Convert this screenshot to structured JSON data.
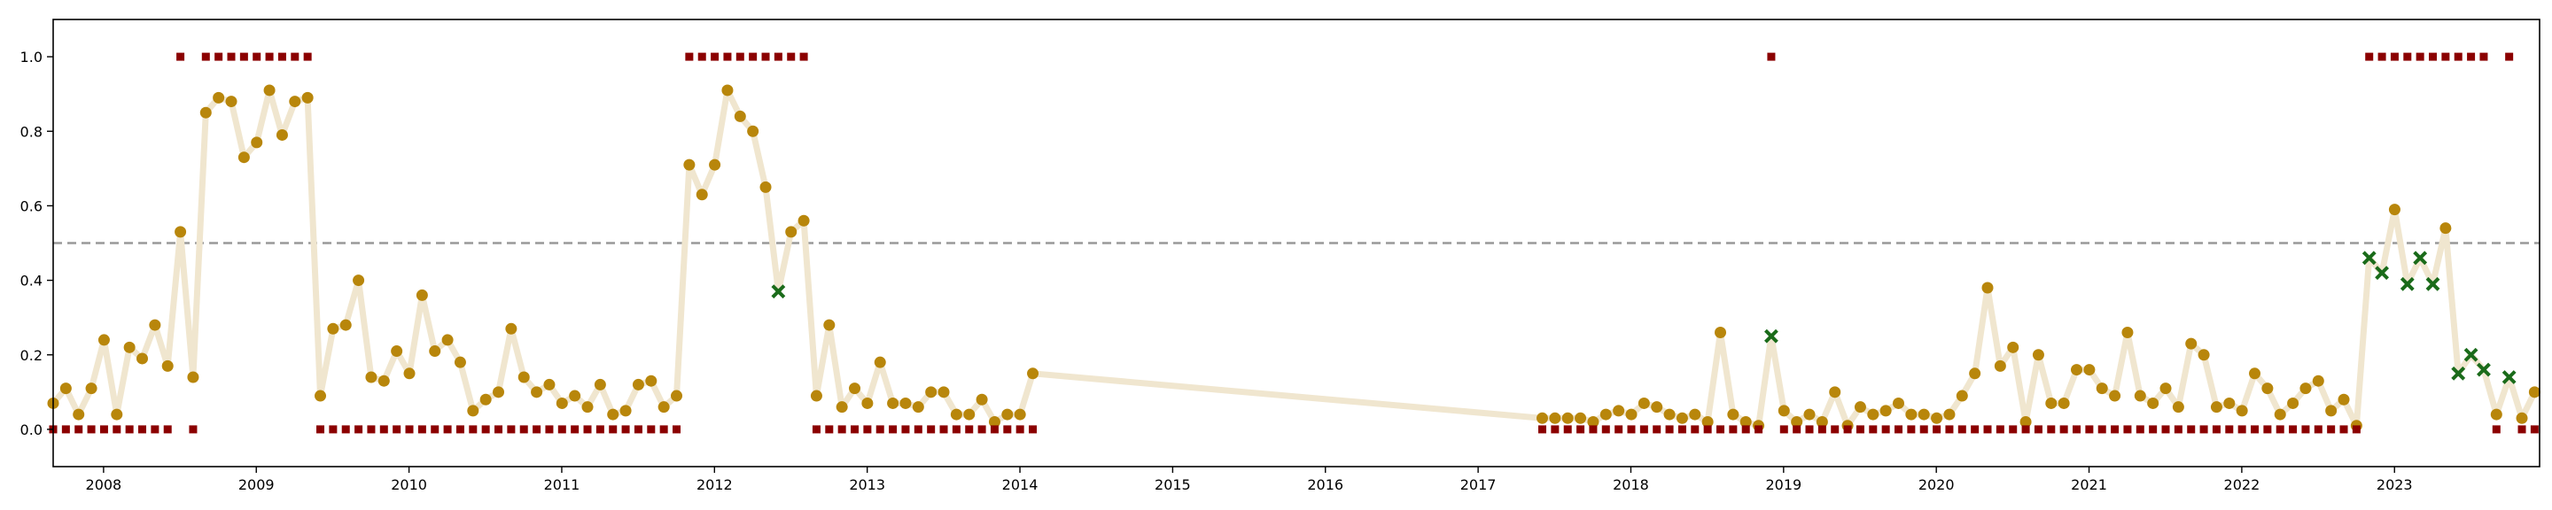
{
  "chart_data": {
    "type": "scatter",
    "title": "",
    "xlabel": "",
    "ylabel": "",
    "xlim": [
      2007.67,
      2023.95
    ],
    "ylim": [
      -0.1,
      1.1
    ],
    "grid": false,
    "legend": "none",
    "x_ticks": [
      2008,
      2009,
      2010,
      2011,
      2012,
      2013,
      2014,
      2015,
      2016,
      2017,
      2018,
      2019,
      2020,
      2021,
      2022,
      2023
    ],
    "x_tick_labels": [
      "2008",
      "2009",
      "2010",
      "2011",
      "2012",
      "2013",
      "2014",
      "2015",
      "2016",
      "2017",
      "2018",
      "2019",
      "2020",
      "2021",
      "2022",
      "2023"
    ],
    "y_ticks": [
      0.0,
      0.2,
      0.4,
      0.6,
      0.8,
      1.0
    ],
    "y_tick_labels": [
      "0.0",
      "0.2",
      "0.4",
      "0.6",
      "0.8",
      "1.0"
    ],
    "threshold": {
      "y": 0.5,
      "style": "dashed",
      "color": "#999999"
    },
    "colors": {
      "line": "#f0e6cf",
      "point": "#b8860b",
      "point_highlight": "#1a6b1a",
      "label_marker": "#8b0000"
    },
    "segments": [
      {
        "x_start": 2007.67,
        "x_step": 0.0833,
        "values": [
          0.07,
          0.11,
          0.04,
          0.11,
          0.24,
          0.04,
          0.22,
          0.19,
          0.28,
          0.17,
          0.53,
          0.14,
          0.85,
          0.89,
          0.88,
          0.73,
          0.77,
          0.91,
          0.79,
          0.88,
          0.89,
          0.09,
          0.27,
          0.28,
          0.4,
          0.14,
          0.13,
          0.21,
          0.15,
          0.36,
          0.21,
          0.24,
          0.18,
          0.05,
          0.08,
          0.1,
          0.27,
          0.14,
          0.1,
          0.12,
          0.07,
          0.09,
          0.06,
          0.12,
          0.04,
          0.05,
          0.12,
          0.13,
          0.06,
          0.09,
          0.71,
          0.63,
          0.71,
          0.91,
          0.84,
          0.8,
          0.65,
          0.37,
          0.53,
          0.56,
          0.09,
          0.28,
          0.06,
          0.11,
          0.07,
          0.18,
          0.07,
          0.07,
          0.06,
          0.1,
          0.1,
          0.04,
          0.04,
          0.08,
          0.02,
          0.04,
          0.04,
          0.15
        ],
        "labels": [
          0,
          0,
          0,
          0,
          0,
          0,
          0,
          0,
          0,
          0,
          1,
          0,
          1,
          1,
          1,
          1,
          1,
          1,
          1,
          1,
          1,
          0,
          0,
          0,
          0,
          0,
          0,
          0,
          0,
          0,
          0,
          0,
          0,
          0,
          0,
          0,
          0,
          0,
          0,
          0,
          0,
          0,
          0,
          0,
          0,
          0,
          0,
          0,
          0,
          0,
          1,
          1,
          1,
          1,
          1,
          1,
          1,
          1,
          1,
          1,
          0,
          0,
          0,
          0,
          0,
          0,
          0,
          0,
          0,
          0,
          0,
          0,
          0,
          0,
          0,
          0,
          0,
          0
        ]
      },
      {
        "x_start": 2017.42,
        "x_step": 0.0833,
        "values": [
          0.03,
          0.03,
          0.03,
          0.03,
          0.02,
          0.04,
          0.05,
          0.04,
          0.07,
          0.06,
          0.04,
          0.03,
          0.04,
          0.02,
          0.26,
          0.04,
          0.02,
          0.01,
          0.25,
          0.05,
          0.02,
          0.04,
          0.02,
          0.1,
          0.01,
          0.06,
          0.04,
          0.05,
          0.07,
          0.04,
          0.04,
          0.03,
          0.04,
          0.09,
          0.15,
          0.38,
          0.17,
          0.22,
          0.02,
          0.2,
          0.07,
          0.07,
          0.16,
          0.16,
          0.11,
          0.09,
          0.26,
          0.09,
          0.07,
          0.11,
          0.06,
          0.23,
          0.2,
          0.06,
          0.07,
          0.05,
          0.15,
          0.11,
          0.04,
          0.07,
          0.11,
          0.13,
          0.05,
          0.08,
          0.01,
          0.46,
          0.42,
          0.59,
          0.39,
          0.46,
          0.39,
          0.54,
          0.15,
          0.2,
          0.16,
          0.04,
          0.14,
          0.03,
          0.1
        ],
        "labels": [
          0,
          0,
          0,
          0,
          0,
          0,
          0,
          0,
          0,
          0,
          0,
          0,
          0,
          0,
          0,
          0,
          0,
          0,
          1,
          0,
          0,
          0,
          0,
          0,
          0,
          0,
          0,
          0,
          0,
          0,
          0,
          0,
          0,
          0,
          0,
          0,
          0,
          0,
          0,
          0,
          0,
          0,
          0,
          0,
          0,
          0,
          0,
          0,
          0,
          0,
          0,
          0,
          0,
          0,
          0,
          0,
          0,
          0,
          0,
          0,
          0,
          0,
          0,
          0,
          0,
          1,
          1,
          1,
          1,
          1,
          1,
          1,
          1,
          1,
          1,
          0,
          1,
          0,
          0
        ]
      }
    ]
  }
}
